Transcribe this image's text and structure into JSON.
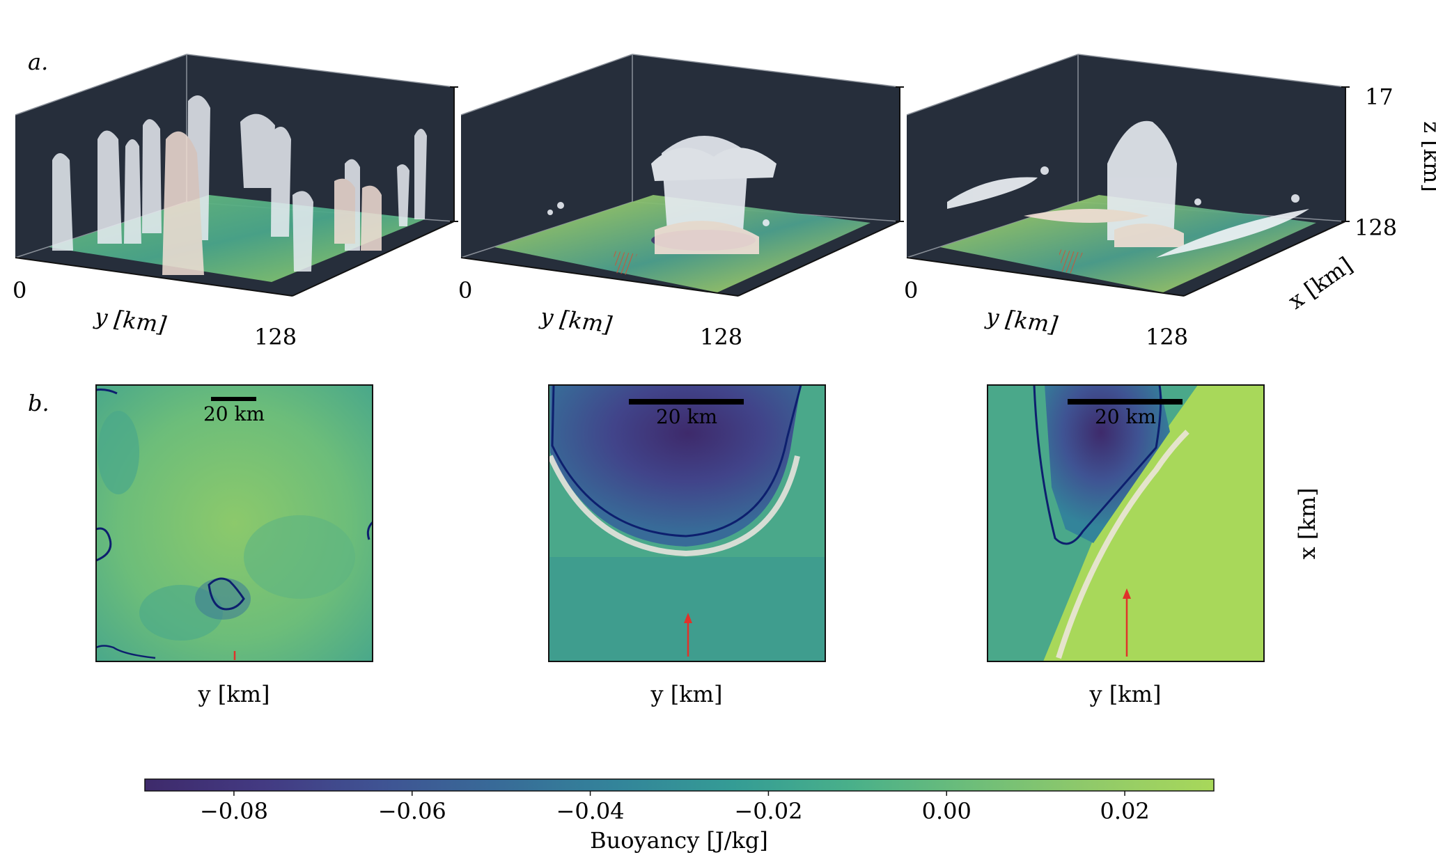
{
  "panels": {
    "a": {
      "label": "a."
    },
    "b": {
      "label": "b."
    }
  },
  "panel_a": {
    "y_axis_label": "y [km]",
    "y_tick_min": "0",
    "y_tick_max": "128",
    "x_axis_label": "x [km]",
    "z_axis_label": "z [km]",
    "z_tick_top": "17",
    "z_tick_bottom": "128"
  },
  "panel_b": {
    "scale_bar_label": "20 km",
    "y_axis_label": "y [km]",
    "x_axis_label": "x [km]"
  },
  "colorbar": {
    "label": "Buoyancy [J/kg]",
    "ticks": [
      "−0.08",
      "−0.06",
      "−0.04",
      "−0.02",
      "0.00",
      "0.02"
    ],
    "min": -0.09,
    "max": 0.03,
    "colors": [
      "#3e2a6b",
      "#433a82",
      "#3f5393",
      "#386b98",
      "#33849a",
      "#349c95",
      "#49b08a",
      "#6cbd7a",
      "#8fc96a",
      "#a8d85a"
    ]
  },
  "colors": {
    "pane_dark": "#262e3b",
    "cloud": "#e8ecf2",
    "cold_pool_contour": "#0d1f6e",
    "arrow": "#e0322a",
    "hatch": "#c8553a"
  }
}
